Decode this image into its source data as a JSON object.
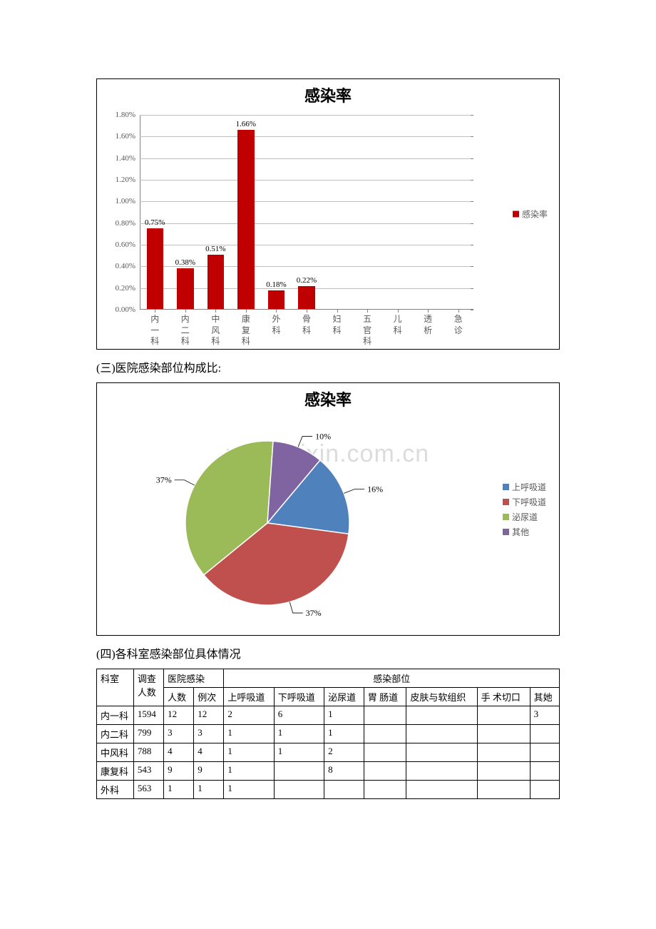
{
  "bar_chart": {
    "type": "bar",
    "title": "感染率",
    "title_fontsize": 22,
    "legend_label": "感染率",
    "bar_color": "#c00000",
    "grid_color": "#bfbfbf",
    "axis_color": "#808080",
    "label_color": "#595959",
    "background_color": "#ffffff",
    "ylim": [
      0,
      0.018
    ],
    "ytick_step": 0.002,
    "yticks": [
      "0.00%",
      "0.20%",
      "0.40%",
      "0.60%",
      "0.80%",
      "1.00%",
      "1.20%",
      "1.40%",
      "1.60%",
      "1.80%"
    ],
    "categories": [
      "内一科",
      "内二科",
      "中风科",
      "康复科",
      "外科",
      "骨科",
      "妇科",
      "五官科",
      "儿科",
      "透析",
      "急诊"
    ],
    "values": [
      0.0075,
      0.0038,
      0.0051,
      0.0166,
      0.0018,
      0.0022,
      0,
      0,
      0,
      0,
      0
    ],
    "value_labels": [
      "0.75%",
      "0.38%",
      "0.51%",
      "1.66%",
      "0.18%",
      "0.22%",
      "",
      "",
      "",
      "",
      ""
    ],
    "label_fontsize": 11
  },
  "heading_site": "(三)医院感染部位构成比:",
  "pie_chart": {
    "type": "pie",
    "title": "感染率",
    "title_fontsize": 22,
    "background_color": "#ffffff",
    "labels": [
      "上呼吸道",
      "下呼吸道",
      "泌尿道",
      "其他"
    ],
    "percents": [
      16,
      37,
      37,
      10
    ],
    "colors": [
      "#4f81bd",
      "#c0504d",
      "#9bbb59",
      "#8064a2"
    ],
    "start_angle": -50,
    "leader_color": "#000000",
    "label_fontsize": 12,
    "watermark": "www.zixin.com.cn"
  },
  "heading_table": "(四)各科室感染部位具体情况",
  "table": {
    "header_top": [
      "科室",
      "调查人数",
      "医院感染",
      "感染部位"
    ],
    "header_infect": [
      "人数",
      "例次"
    ],
    "header_sites": [
      "上呼吸道",
      "下呼吸道",
      "泌尿道",
      "胃 肠道",
      "皮肤与软组织",
      "手 术切口",
      "其她"
    ],
    "rows": [
      {
        "dept": "内一科",
        "survey": "1594",
        "inf_n": "12",
        "inf_c": "12",
        "sites": [
          "2",
          "6",
          "1",
          "",
          "",
          "",
          "3"
        ]
      },
      {
        "dept": "内二科",
        "survey": "799",
        "inf_n": "3",
        "inf_c": "3",
        "sites": [
          "1",
          "1",
          "1",
          "",
          "",
          "",
          ""
        ]
      },
      {
        "dept": "中风科",
        "survey": "788",
        "inf_n": "4",
        "inf_c": "4",
        "sites": [
          "1",
          "1",
          "2",
          "",
          "",
          "",
          ""
        ]
      },
      {
        "dept": "康复科",
        "survey": "543",
        "inf_n": "9",
        "inf_c": "9",
        "sites": [
          "1",
          "",
          "8",
          "",
          "",
          "",
          ""
        ]
      },
      {
        "dept": "外科",
        "survey": "563",
        "inf_n": "1",
        "inf_c": "1",
        "sites": [
          "1",
          "",
          "",
          "",
          "",
          "",
          ""
        ]
      }
    ]
  }
}
